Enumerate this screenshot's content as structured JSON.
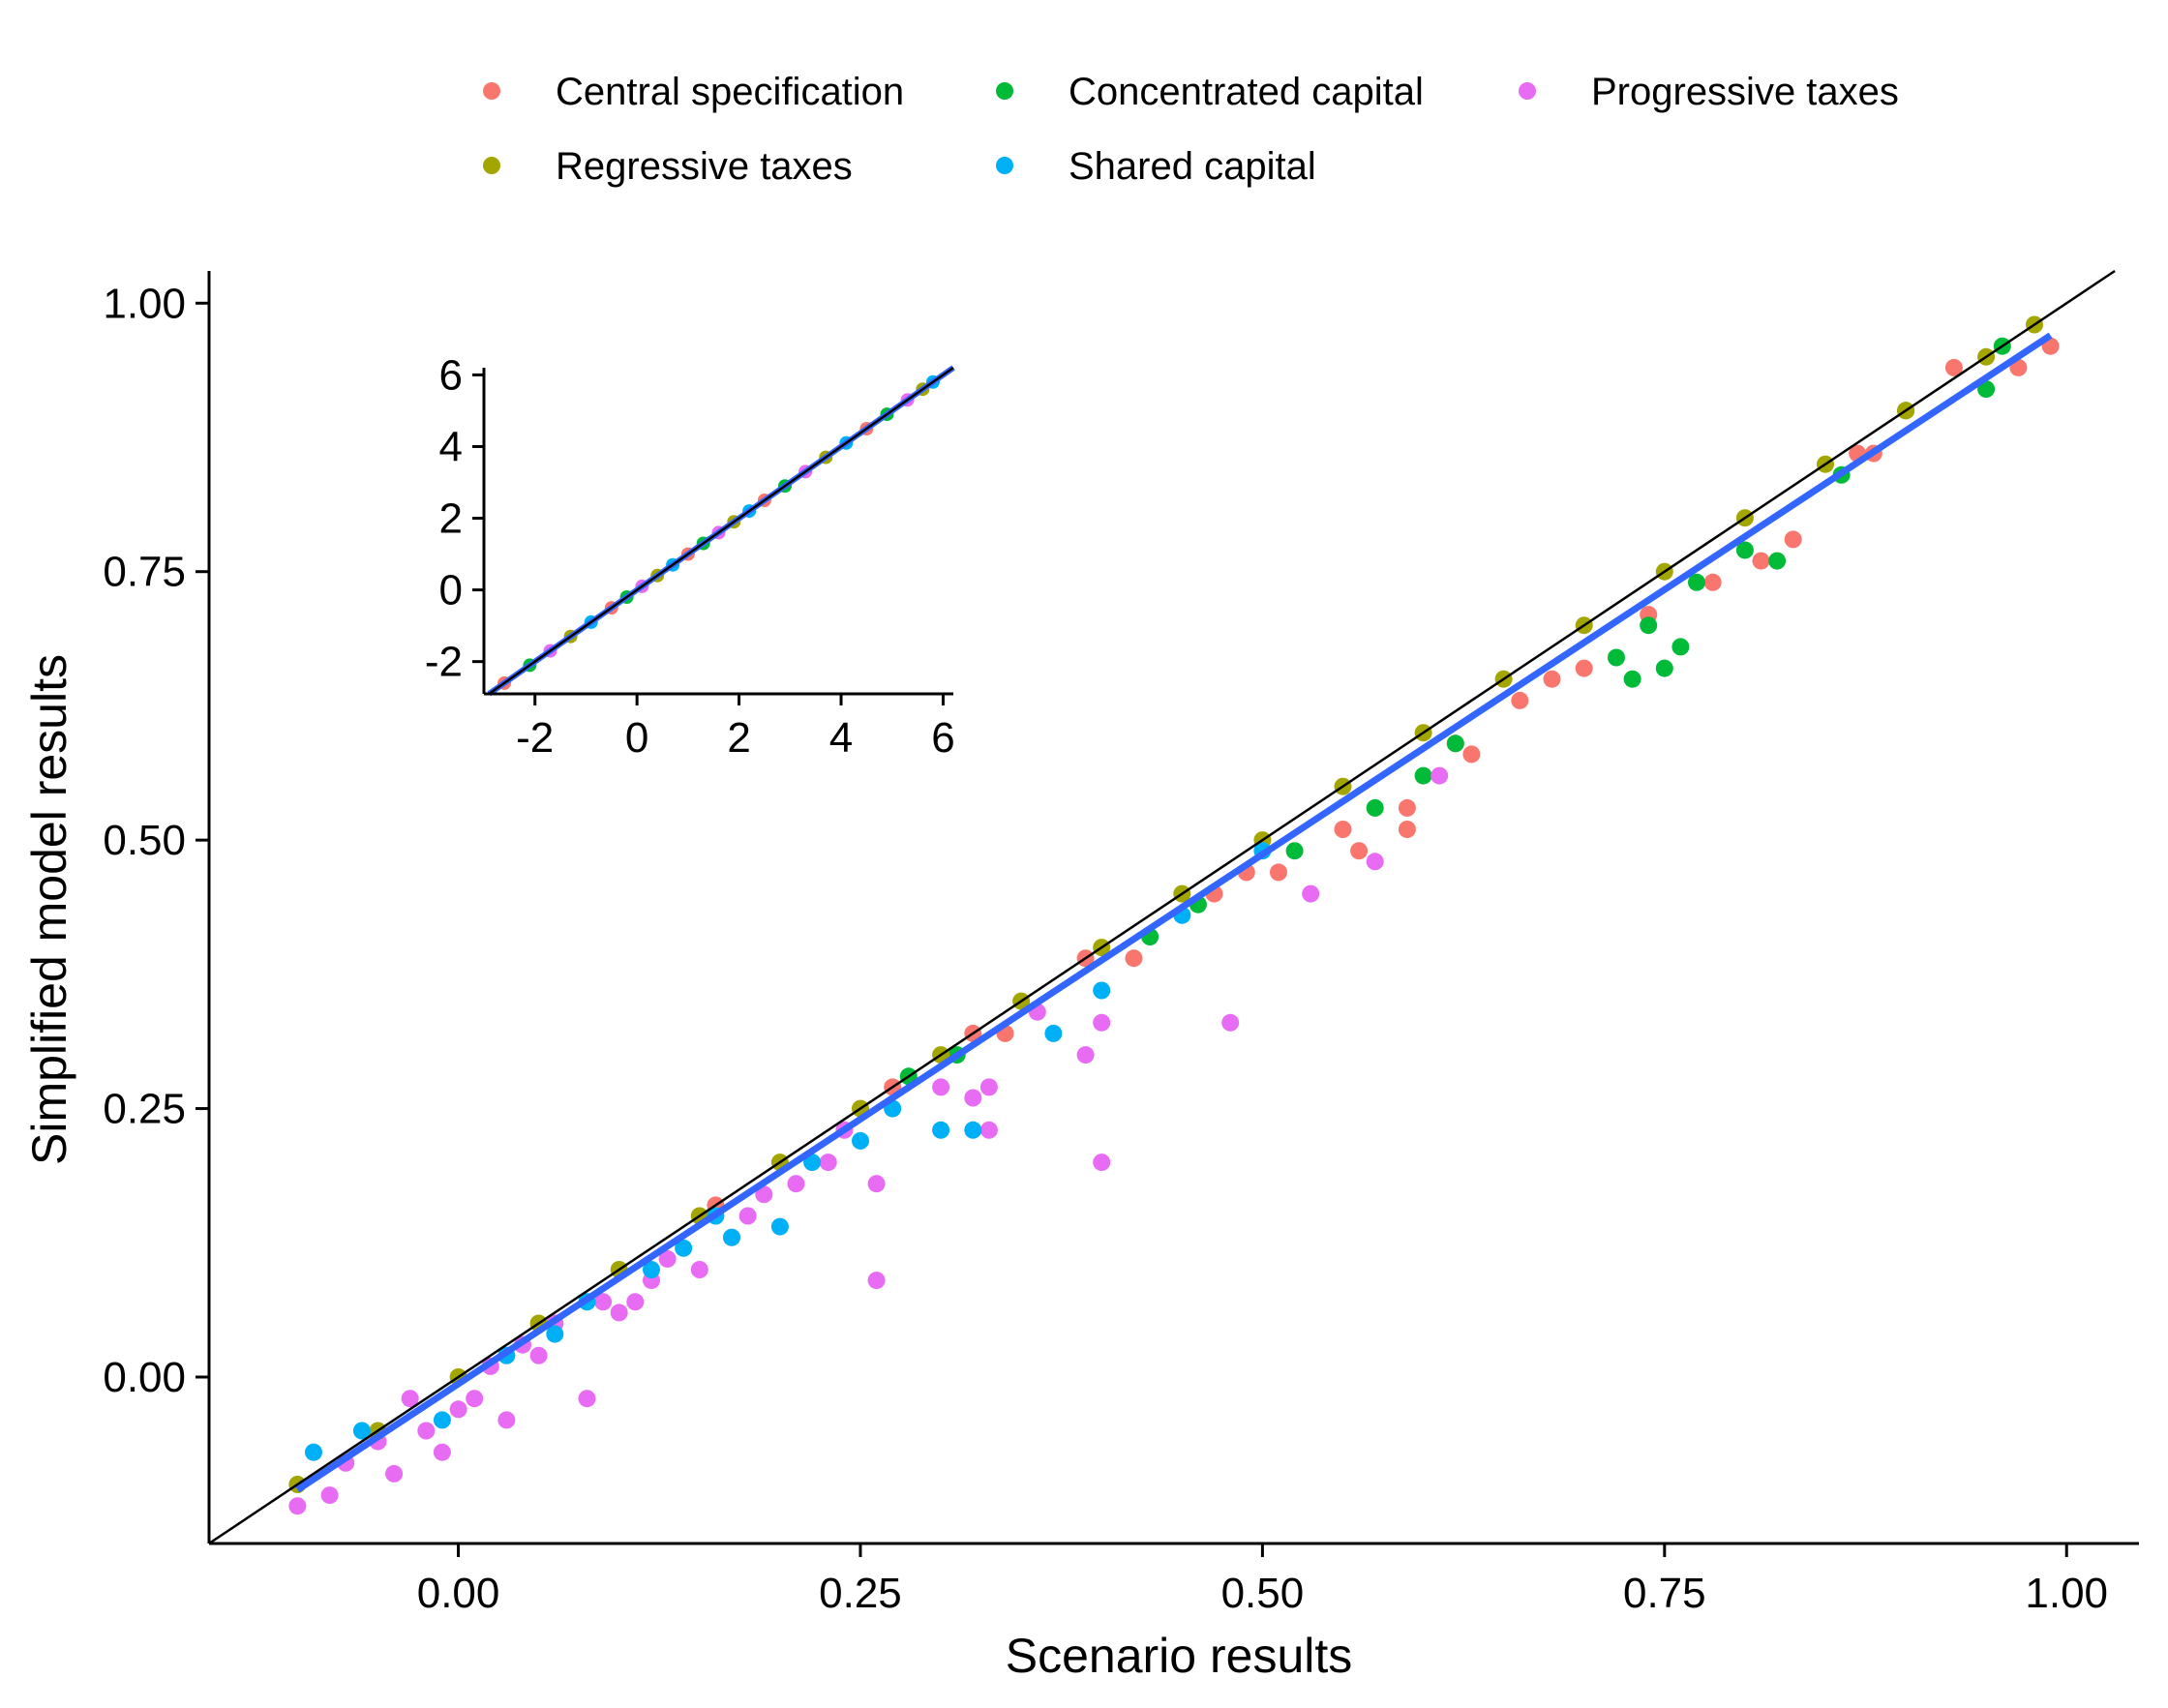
{
  "chart_data": {
    "type": "scatter",
    "title": "",
    "xlabel": "Scenario results",
    "ylabel": "Simplified model results",
    "xlim": [
      -0.155,
      1.045
    ],
    "ylim": [
      -0.155,
      1.03
    ],
    "x_ticks": [
      "0.00",
      "0.25",
      "0.50",
      "0.75",
      "1.00"
    ],
    "y_ticks": [
      "0.00",
      "0.25",
      "0.50",
      "0.75",
      "1.00"
    ],
    "grid": false,
    "legend_position": "top",
    "legend": [
      {
        "name": "Central specification",
        "color": "#F8766D"
      },
      {
        "name": "Concentrated capital",
        "color": "#00BA38"
      },
      {
        "name": "Progressive taxes",
        "color": "#E76BF3"
      },
      {
        "name": "Regressive taxes",
        "color": "#A3A500"
      },
      {
        "name": "Shared capital",
        "color": "#00B0F6"
      }
    ],
    "reference_line": {
      "type": "identity",
      "color": "#000000"
    },
    "fit_line": {
      "color": "#3366FF",
      "x": [
        -0.1,
        0.99
      ],
      "y": [
        -0.105,
        0.97
      ]
    },
    "series": [
      {
        "name": "Central specification",
        "color": "#F8766D",
        "points": [
          [
            0.42,
            0.39
          ],
          [
            0.47,
            0.45
          ],
          [
            0.49,
            0.47
          ],
          [
            0.51,
            0.47
          ],
          [
            0.55,
            0.51
          ],
          [
            0.56,
            0.49
          ],
          [
            0.59,
            0.53
          ],
          [
            0.59,
            0.51
          ],
          [
            0.62,
            0.59
          ],
          [
            0.63,
            0.58
          ],
          [
            0.66,
            0.63
          ],
          [
            0.68,
            0.65
          ],
          [
            0.7,
            0.66
          ],
          [
            0.74,
            0.71
          ],
          [
            0.78,
            0.74
          ],
          [
            0.81,
            0.76
          ],
          [
            0.83,
            0.78
          ],
          [
            0.87,
            0.86
          ],
          [
            0.88,
            0.86
          ],
          [
            0.9,
            0.9
          ],
          [
            0.93,
            0.94
          ],
          [
            0.97,
            0.94
          ],
          [
            0.99,
            0.96
          ],
          [
            0.34,
            0.32
          ],
          [
            0.32,
            0.32
          ],
          [
            0.39,
            0.39
          ],
          [
            0.27,
            0.27
          ],
          [
            0.16,
            0.16
          ]
        ]
      },
      {
        "name": "Concentrated capital",
        "color": "#00BA38",
        "points": [
          [
            0.43,
            0.41
          ],
          [
            0.46,
            0.44
          ],
          [
            0.52,
            0.49
          ],
          [
            0.57,
            0.53
          ],
          [
            0.6,
            0.56
          ],
          [
            0.62,
            0.59
          ],
          [
            0.72,
            0.67
          ],
          [
            0.73,
            0.65
          ],
          [
            0.74,
            0.7
          ],
          [
            0.75,
            0.66
          ],
          [
            0.76,
            0.68
          ],
          [
            0.77,
            0.74
          ],
          [
            0.8,
            0.77
          ],
          [
            0.82,
            0.76
          ],
          [
            0.86,
            0.84
          ],
          [
            0.9,
            0.9
          ],
          [
            0.95,
            0.92
          ],
          [
            0.96,
            0.96
          ],
          [
            0.31,
            0.3
          ],
          [
            0.28,
            0.28
          ]
        ]
      },
      {
        "name": "Progressive taxes",
        "color": "#E76BF3",
        "points": [
          [
            0.48,
            0.33
          ],
          [
            0.4,
            0.2
          ],
          [
            0.26,
            0.09
          ],
          [
            0.39,
            0.3
          ],
          [
            0.4,
            0.33
          ],
          [
            0.33,
            0.27
          ],
          [
            0.33,
            0.23
          ],
          [
            0.32,
            0.26
          ],
          [
            0.26,
            0.18
          ],
          [
            0.24,
            0.23
          ],
          [
            0.23,
            0.2
          ],
          [
            0.19,
            0.17
          ],
          [
            0.17,
            0.13
          ],
          [
            0.15,
            0.1
          ],
          [
            0.13,
            0.11
          ],
          [
            0.12,
            0.09
          ],
          [
            0.1,
            0.06
          ],
          [
            0.08,
            -0.02
          ],
          [
            0.06,
            0.05
          ],
          [
            0.04,
            0.03
          ],
          [
            0.03,
            -0.04
          ],
          [
            0.02,
            0.01
          ],
          [
            0.0,
            -0.03
          ],
          [
            -0.01,
            -0.07
          ],
          [
            -0.03,
            -0.02
          ],
          [
            -0.04,
            -0.09
          ],
          [
            -0.05,
            -0.06
          ],
          [
            -0.07,
            -0.08
          ],
          [
            -0.08,
            -0.11
          ],
          [
            -0.1,
            -0.12
          ],
          [
            0.53,
            0.45
          ],
          [
            0.57,
            0.48
          ],
          [
            0.61,
            0.56
          ],
          [
            0.36,
            0.34
          ],
          [
            0.3,
            0.27
          ],
          [
            0.21,
            0.18
          ],
          [
            0.18,
            0.15
          ],
          [
            0.11,
            0.07
          ],
          [
            0.09,
            0.07
          ],
          [
            0.05,
            0.02
          ],
          [
            0.01,
            -0.02
          ],
          [
            -0.02,
            -0.05
          ]
        ]
      },
      {
        "name": "Regressive taxes",
        "color": "#A3A500",
        "points": [
          [
            -0.1,
            -0.1
          ],
          [
            -0.05,
            -0.05
          ],
          [
            0.0,
            0.0
          ],
          [
            0.05,
            0.05
          ],
          [
            0.1,
            0.1
          ],
          [
            0.15,
            0.15
          ],
          [
            0.2,
            0.2
          ],
          [
            0.25,
            0.25
          ],
          [
            0.3,
            0.3
          ],
          [
            0.35,
            0.35
          ],
          [
            0.4,
            0.4
          ],
          [
            0.45,
            0.45
          ],
          [
            0.5,
            0.5
          ],
          [
            0.55,
            0.55
          ],
          [
            0.6,
            0.6
          ],
          [
            0.65,
            0.65
          ],
          [
            0.7,
            0.7
          ],
          [
            0.75,
            0.75
          ],
          [
            0.8,
            0.8
          ],
          [
            0.85,
            0.85
          ],
          [
            0.9,
            0.9
          ],
          [
            0.95,
            0.95
          ],
          [
            0.98,
            0.98
          ]
        ]
      },
      {
        "name": "Shared capital",
        "color": "#00B0F6",
        "points": [
          [
            0.32,
            0.23
          ],
          [
            0.3,
            0.23
          ],
          [
            0.2,
            0.14
          ],
          [
            0.22,
            0.2
          ],
          [
            0.17,
            0.13
          ],
          [
            0.14,
            0.12
          ],
          [
            0.12,
            0.1
          ],
          [
            0.06,
            0.04
          ],
          [
            0.03,
            0.02
          ],
          [
            -0.01,
            -0.04
          ],
          [
            -0.06,
            -0.05
          ],
          [
            -0.09,
            -0.07
          ],
          [
            0.37,
            0.32
          ],
          [
            0.4,
            0.36
          ],
          [
            0.45,
            0.43
          ],
          [
            0.5,
            0.49
          ],
          [
            0.27,
            0.25
          ],
          [
            0.25,
            0.22
          ],
          [
            0.16,
            0.15
          ],
          [
            0.08,
            0.07
          ]
        ]
      }
    ],
    "inset": {
      "type": "scatter",
      "xlim": [
        -3,
        6.2
      ],
      "ylim": [
        -2.9,
        6.2
      ],
      "x_ticks": [
        "-2",
        "0",
        "2",
        "4",
        "6"
      ],
      "y_ticks": [
        "-2",
        "0",
        "2",
        "4",
        "6"
      ],
      "x_tick_values": [
        -2,
        0,
        2,
        4,
        6
      ],
      "y_tick_values": [
        -2,
        0,
        2,
        4,
        6
      ],
      "points": [
        [
          -2.6,
          -2.6
        ],
        [
          -2.1,
          -2.1
        ],
        [
          -1.7,
          -1.7
        ],
        [
          -1.3,
          -1.3
        ],
        [
          -0.9,
          -0.9
        ],
        [
          -0.5,
          -0.5
        ],
        [
          -0.2,
          -0.2
        ],
        [
          0.1,
          0.1
        ],
        [
          0.4,
          0.4
        ],
        [
          0.7,
          0.7
        ],
        [
          1.0,
          1.0
        ],
        [
          1.3,
          1.3
        ],
        [
          1.6,
          1.6
        ],
        [
          1.9,
          1.9
        ],
        [
          2.2,
          2.2
        ],
        [
          2.5,
          2.5
        ],
        [
          2.9,
          2.9
        ],
        [
          3.3,
          3.3
        ],
        [
          3.7,
          3.7
        ],
        [
          4.1,
          4.1
        ],
        [
          4.5,
          4.5
        ],
        [
          4.9,
          4.9
        ],
        [
          5.3,
          5.3
        ],
        [
          5.6,
          5.6
        ],
        [
          5.8,
          5.8
        ]
      ]
    }
  }
}
